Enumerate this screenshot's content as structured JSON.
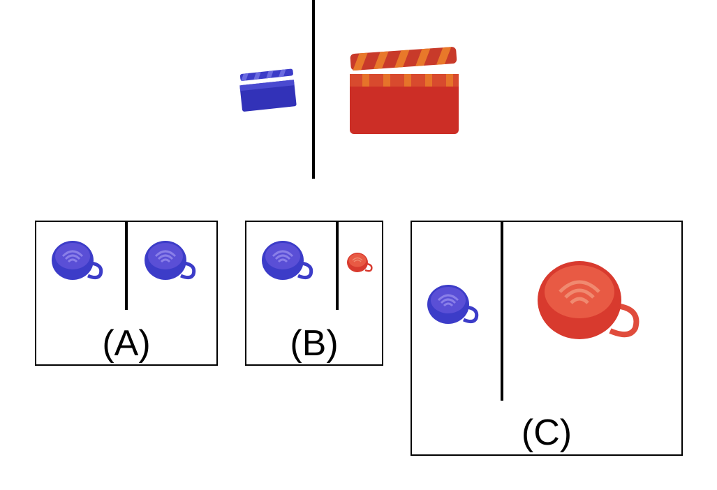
{
  "colors": {
    "blue": "#3c3cc8",
    "blue_dark": "#2a2aa0",
    "red": "#d83a2e",
    "red_dark": "#b8281e",
    "orange_stripe": "#e8782a",
    "line": "#000000"
  },
  "prompt": {
    "left_icon": "clapperboard-icon",
    "left_color": "blue",
    "right_icon": "clapperboard-icon",
    "right_color": "red"
  },
  "options": [
    {
      "label": "(A)",
      "left_icon": "coffee-cup-icon",
      "left_color": "blue",
      "right_icon": "coffee-cup-icon",
      "right_color": "blue"
    },
    {
      "label": "(B)",
      "left_icon": "coffee-cup-icon",
      "left_color": "blue",
      "right_icon": "coffee-cup-icon",
      "right_color": "red"
    },
    {
      "label": "(C)",
      "left_icon": "coffee-cup-icon",
      "left_color": "blue",
      "right_icon": "coffee-cup-icon",
      "right_color": "red"
    }
  ]
}
